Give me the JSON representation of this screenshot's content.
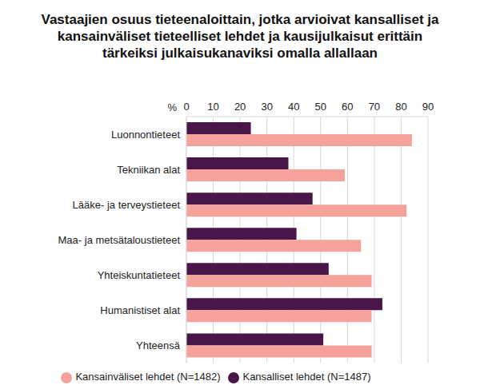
{
  "chart_data": {
    "type": "bar",
    "orientation": "horizontal",
    "title": "Vastaajien osuus tieteenaloittain, jotka arvioivat kansalliset ja kansainväliset tieteelliset lehdet ja kausijulkaisut erittäin tärkeiksi julkaisukanaviksi omalla allallaan",
    "xlabel": "%",
    "categories": [
      "Luonnontieteet",
      "Tekniikan alat",
      "Lääke- ja terveystieteet",
      "Maa- ja metsätaloustieteet",
      "Yhteiskuntatieteet",
      "Humanistiset alat",
      "Yhteensä"
    ],
    "series": [
      {
        "name": "Kansalliset lehdet (N=1487)",
        "color": "#4a1548",
        "values": [
          24,
          38,
          47,
          41,
          53,
          73,
          51
        ]
      },
      {
        "name": "Kansainväliset lehdet (N=1482)",
        "color": "#f5a29a",
        "values": [
          84,
          59,
          82,
          65,
          69,
          69,
          69
        ]
      }
    ],
    "xlim": [
      0,
      90
    ],
    "xticks": [
      0,
      10,
      20,
      30,
      40,
      50,
      60,
      70,
      80,
      90
    ],
    "grid": true,
    "legend": "bottom"
  }
}
